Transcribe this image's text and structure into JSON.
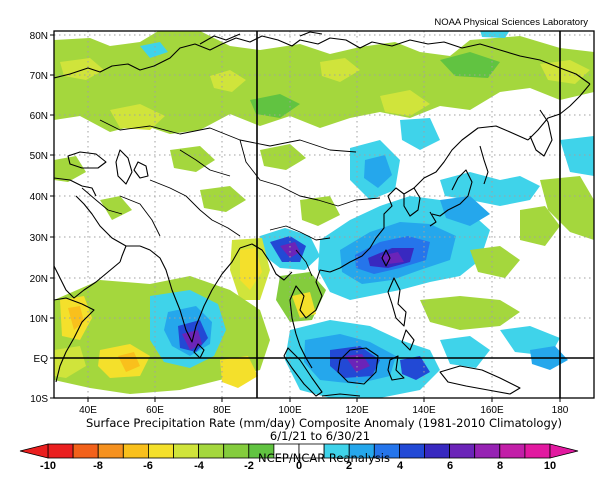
{
  "credit": "NOAA Physical Sciences Laboratory",
  "title": "Surface Precipitation Rate (mm/day) Composite Anomaly (1981-2010 Climatology)",
  "date_range": "6/1/21 to 6/30/21",
  "source": "NCEP/NCAR Reanalysis",
  "lat_labels": [
    "80N",
    "70N",
    "60N",
    "50N",
    "40N",
    "30N",
    "20N",
    "10N",
    "EQ",
    "10S"
  ],
  "lon_labels": [
    "40E",
    "60E",
    "80E",
    "100E",
    "120E",
    "140E",
    "160E",
    "180"
  ],
  "colorbar": {
    "tick_labels": [
      "-10",
      "-8",
      "-6",
      "-4",
      "-2",
      "0",
      "2",
      "4",
      "6",
      "8",
      "10"
    ],
    "colors": [
      "#ea1f1f",
      "#f2611a",
      "#f5911f",
      "#f9c01c",
      "#f4e02b",
      "#d0e43b",
      "#a4d73d",
      "#84cc3d",
      "#61c341",
      "#ffffff",
      "#ffffff",
      "#3fd3ea",
      "#25a7ec",
      "#2575eb",
      "#2249d5",
      "#3829c0",
      "#6b24b8",
      "#9622b3",
      "#c21fa8",
      "#e219a0"
    ]
  },
  "colors": {
    "frame": "#000000",
    "grid": "#a0a0a0",
    "coast": "#000000"
  }
}
